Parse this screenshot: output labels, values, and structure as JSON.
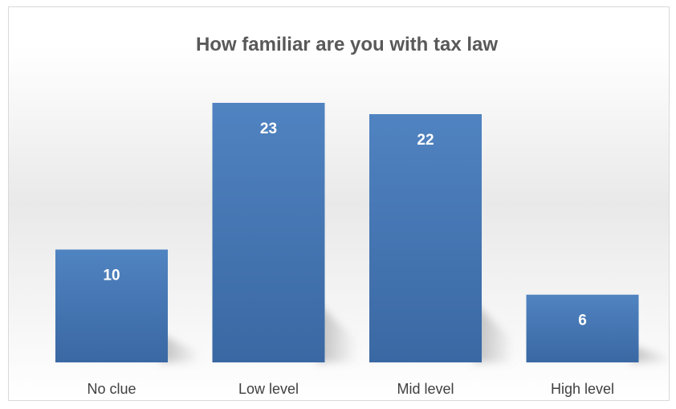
{
  "chart_data": {
    "type": "bar",
    "title": "How familiar are you with tax law",
    "categories": [
      "No clue",
      "Low level",
      "Mid level",
      "High level"
    ],
    "values": [
      10,
      23,
      22,
      6
    ],
    "data_labels": [
      "10",
      "23",
      "22",
      "6"
    ],
    "xlabel": "",
    "ylabel": "",
    "ylim": [
      0,
      23
    ],
    "grid": false,
    "legend": "none",
    "colors": {
      "bar_top": "#5083c1",
      "bar_bottom": "#3a68a3",
      "title": "#595959",
      "tick_label": "#404040",
      "data_label": "#ffffff"
    }
  }
}
